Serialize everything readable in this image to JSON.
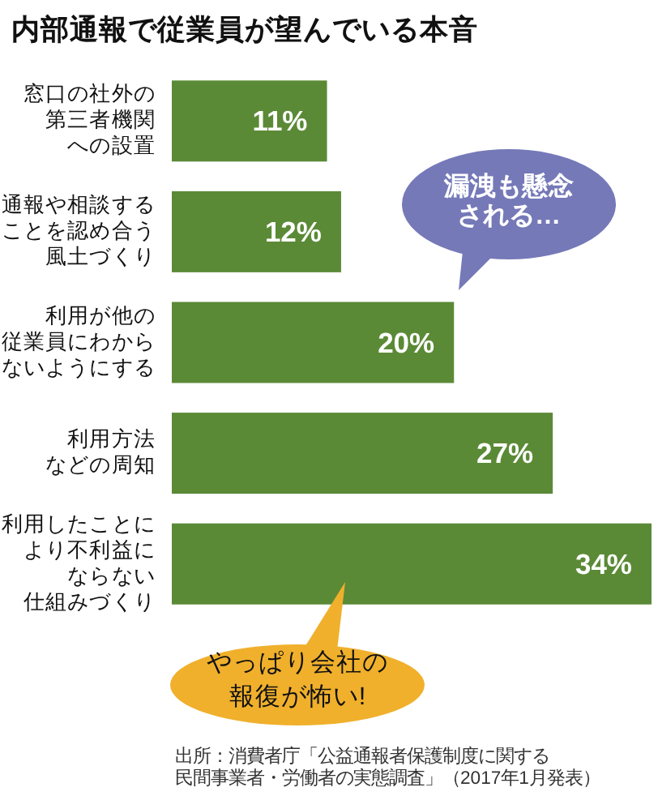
{
  "chart_data": {
    "type": "bar",
    "orientation": "horizontal",
    "title": "内部通報で従業員が望んでいる本音",
    "categories": [
      "窓口の社外の第三者機関への設置",
      "通報や相談することを認め合う風土づくり",
      "利用が他の従業員にわからないようにする",
      "利用方法などの周知",
      "利用したことにより不利益にならない仕組みづくり"
    ],
    "values": [
      11,
      12,
      20,
      27,
      34
    ],
    "value_labels": [
      "11%",
      "12%",
      "20%",
      "27%",
      "34%"
    ],
    "color": "#5b8a36",
    "annotations": [
      "漏洩も懸念される…",
      "やっぱり会社の報復が怖い!",
      "出所：消費者庁「公益通報者保護制度に関する民間事業者・労働者の実態調査」（2017年1月発表）"
    ]
  }
}
